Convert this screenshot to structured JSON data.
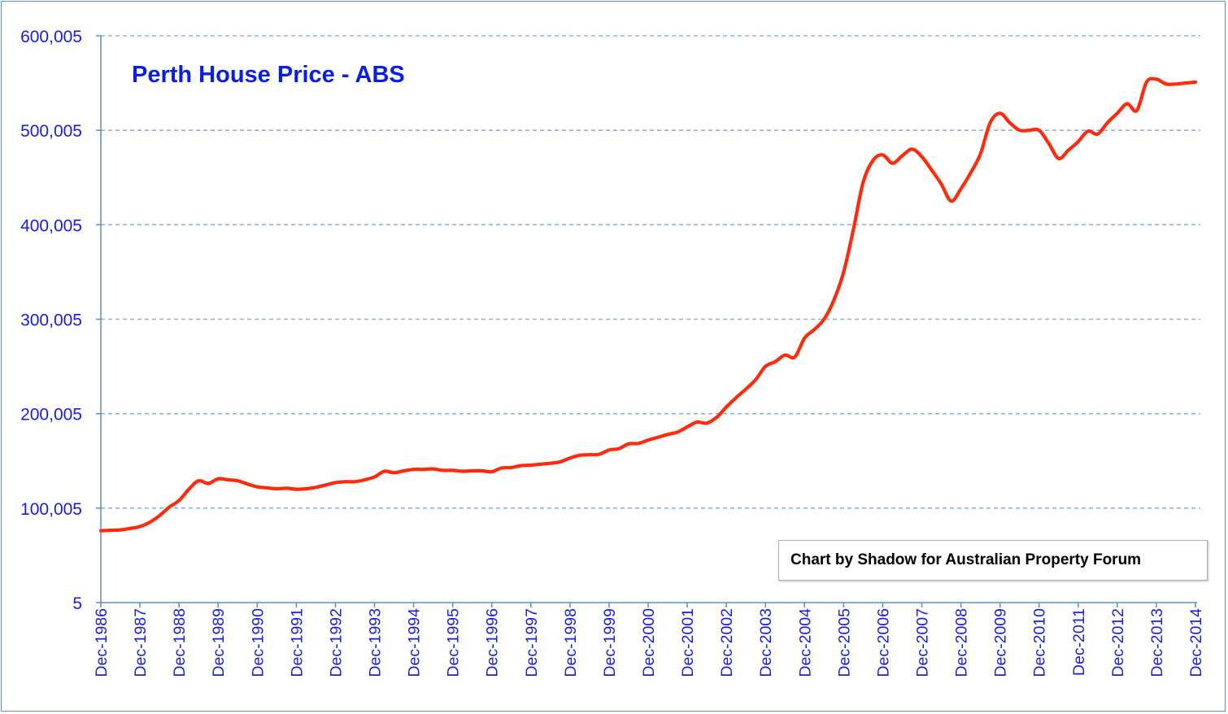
{
  "chart_data": {
    "type": "line",
    "title": "Perth House Price - ABS",
    "annotation": "Chart by Shadow for Australian Property Forum",
    "xlabel": "",
    "ylabel": "",
    "ylim": [
      5,
      600005
    ],
    "y_ticks": [
      "5",
      "100,005",
      "200,005",
      "300,005",
      "400,005",
      "500,005",
      "600,005"
    ],
    "y_tick_values": [
      5,
      100005,
      200005,
      300005,
      400005,
      500005,
      600005
    ],
    "grid": true,
    "x_tick_labels": [
      "Dec-1986",
      "Dec-1987",
      "Dec-1988",
      "Dec-1989",
      "Dec-1990",
      "Dec-1991",
      "Dec-1992",
      "Dec-1993",
      "Dec-1994",
      "Dec-1995",
      "Dec-1996",
      "Dec-1997",
      "Dec-1998",
      "Dec-1999",
      "Dec-2000",
      "Dec-2001",
      "Dec-2002",
      "Dec-2003",
      "Dec-2004",
      "Dec-2005",
      "Dec-2006",
      "Dec-2007",
      "Dec-2008",
      "Dec-2009",
      "Dec-2010",
      "Dec-2011",
      "Dec-2012",
      "Dec-2013",
      "Dec-2014"
    ],
    "x_range": [
      1986,
      2014
    ],
    "series": [
      {
        "name": "Perth House Price",
        "color": "#ff2a0a",
        "points": [
          [
            1986.0,
            76000
          ],
          [
            1986.25,
            76500
          ],
          [
            1986.5,
            77000
          ],
          [
            1986.75,
            78500
          ],
          [
            1987.0,
            80500
          ],
          [
            1987.25,
            85000
          ],
          [
            1987.5,
            92000
          ],
          [
            1987.75,
            101000
          ],
          [
            1988.0,
            108000
          ],
          [
            1988.25,
            120000
          ],
          [
            1988.5,
            129000
          ],
          [
            1988.75,
            126000
          ],
          [
            1989.0,
            131000
          ],
          [
            1989.25,
            130000
          ],
          [
            1989.5,
            129000
          ],
          [
            1989.75,
            125500
          ],
          [
            1990.0,
            122500
          ],
          [
            1990.25,
            121500
          ],
          [
            1990.5,
            120500
          ],
          [
            1990.75,
            121000
          ],
          [
            1991.0,
            120000
          ],
          [
            1991.25,
            120500
          ],
          [
            1991.5,
            122000
          ],
          [
            1991.75,
            124500
          ],
          [
            1992.0,
            127000
          ],
          [
            1992.25,
            128000
          ],
          [
            1992.5,
            128000
          ],
          [
            1992.75,
            130000
          ],
          [
            1993.0,
            133000
          ],
          [
            1993.25,
            139000
          ],
          [
            1993.5,
            137500
          ],
          [
            1993.75,
            139500
          ],
          [
            1994.0,
            141000
          ],
          [
            1994.25,
            141000
          ],
          [
            1994.5,
            141500
          ],
          [
            1994.75,
            140000
          ],
          [
            1995.0,
            140000
          ],
          [
            1995.25,
            139000
          ],
          [
            1995.5,
            139500
          ],
          [
            1995.75,
            139500
          ],
          [
            1996.0,
            138500
          ],
          [
            1996.25,
            142500
          ],
          [
            1996.5,
            143000
          ],
          [
            1996.75,
            145000
          ],
          [
            1997.0,
            145500
          ],
          [
            1997.25,
            146500
          ],
          [
            1997.5,
            147500
          ],
          [
            1997.75,
            149000
          ],
          [
            1998.0,
            153000
          ],
          [
            1998.25,
            156000
          ],
          [
            1998.5,
            156500
          ],
          [
            1998.75,
            157000
          ],
          [
            1999.0,
            161500
          ],
          [
            1999.25,
            163000
          ],
          [
            1999.5,
            168000
          ],
          [
            1999.75,
            168500
          ],
          [
            2000.0,
            172000
          ],
          [
            2000.25,
            175000
          ],
          [
            2000.5,
            178000
          ],
          [
            2000.75,
            180500
          ],
          [
            2001.0,
            186000
          ],
          [
            2001.25,
            191000
          ],
          [
            2001.5,
            190000
          ],
          [
            2001.75,
            196000
          ],
          [
            2002.0,
            207000
          ],
          [
            2002.25,
            217000
          ],
          [
            2002.5,
            226000
          ],
          [
            2002.75,
            236000
          ],
          [
            2003.0,
            250000
          ],
          [
            2003.25,
            255000
          ],
          [
            2003.5,
            262000
          ],
          [
            2003.75,
            260000
          ],
          [
            2004.0,
            280000
          ],
          [
            2004.25,
            289000
          ],
          [
            2004.5,
            300000
          ],
          [
            2004.75,
            320000
          ],
          [
            2005.0,
            350000
          ],
          [
            2005.25,
            395000
          ],
          [
            2005.5,
            445000
          ],
          [
            2005.75,
            468000
          ],
          [
            2006.0,
            474000
          ],
          [
            2006.25,
            465000
          ],
          [
            2006.5,
            473000
          ],
          [
            2006.75,
            480000
          ],
          [
            2007.0,
            472000
          ],
          [
            2007.25,
            458000
          ],
          [
            2007.5,
            443000
          ],
          [
            2007.75,
            425000
          ],
          [
            2008.0,
            438000
          ],
          [
            2008.25,
            455000
          ],
          [
            2008.5,
            475000
          ],
          [
            2008.75,
            508000
          ],
          [
            2009.0,
            518000
          ],
          [
            2009.25,
            508000
          ],
          [
            2009.5,
            500000
          ],
          [
            2009.75,
            500000
          ],
          [
            2010.0,
            500000
          ],
          [
            2010.25,
            486000
          ],
          [
            2010.5,
            470000
          ],
          [
            2010.75,
            479000
          ],
          [
            2011.0,
            488000
          ],
          [
            2011.25,
            499000
          ],
          [
            2011.5,
            496000
          ],
          [
            2011.75,
            508000
          ],
          [
            2012.0,
            518000
          ],
          [
            2012.25,
            528000
          ],
          [
            2012.5,
            521000
          ],
          [
            2012.75,
            551000
          ],
          [
            2013.0,
            554000
          ],
          [
            2013.25,
            549000
          ],
          [
            2013.5,
            549000
          ],
          [
            2013.75,
            550000
          ],
          [
            2014.0,
            551000
          ]
        ]
      }
    ]
  }
}
